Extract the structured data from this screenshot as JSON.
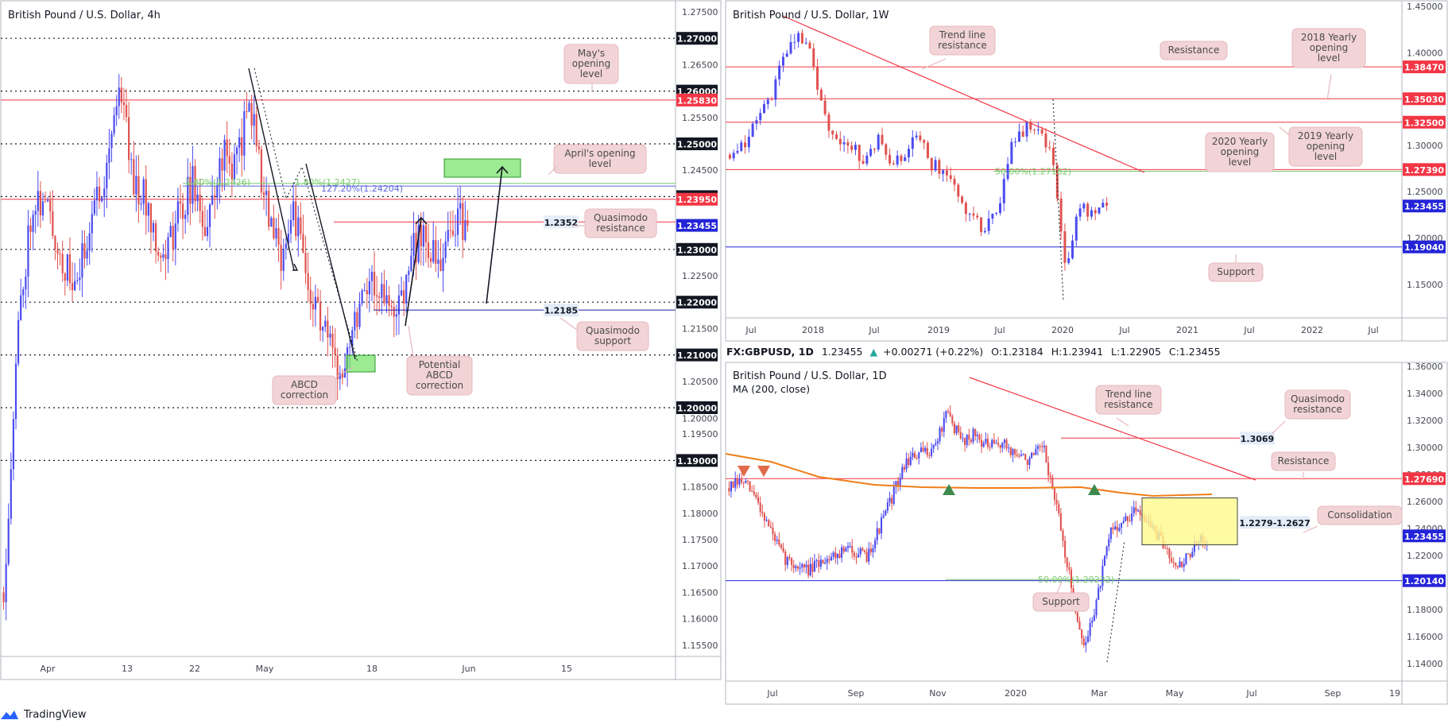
{
  "colors": {
    "up": "#4b4bf0",
    "down": "#e0524f",
    "red": "#f23645",
    "blue": "#2424d8",
    "black": "#131722",
    "orange": "#ef7d18",
    "green": "#7be36d",
    "callout_bg": "#f2d4d6",
    "callout_border": "#e6b9bd",
    "axis_text": "#434651",
    "yellow": "#fffa8c",
    "sma": "#ef7d18"
  },
  "panel_4h": {
    "title": "British Pound / U.S. Dollar, 4h",
    "x_ticks": [
      "Apr",
      "13",
      "22",
      "May",
      "18",
      "Jun",
      "15"
    ],
    "levels": [
      {
        "label": "1.27500",
        "kind": "axis"
      },
      {
        "label": "1.27000",
        "kind": "dotted"
      },
      {
        "label": "1.26500",
        "kind": "axis"
      },
      {
        "label": "1.26000",
        "kind": "dotted"
      },
      {
        "label": "1.25830",
        "kind": "red"
      },
      {
        "label": "1.25500",
        "kind": "axis"
      },
      {
        "label": "1.25000",
        "kind": "dotted"
      },
      {
        "label": "1.24500",
        "kind": "axis"
      },
      {
        "label": "1.24000",
        "kind": "dotted"
      },
      {
        "label": "1.23950",
        "kind": "red"
      },
      {
        "label": "1.23455",
        "kind": "current"
      },
      {
        "label": "1.23000",
        "kind": "dotted"
      },
      {
        "label": "1.22500",
        "kind": "axis"
      },
      {
        "label": "1.22000",
        "kind": "dotted"
      },
      {
        "label": "1.21500",
        "kind": "axis"
      },
      {
        "label": "1.21000",
        "kind": "dotted"
      },
      {
        "label": "1.20500",
        "kind": "axis"
      },
      {
        "label": "1.20000",
        "kind": "dotted"
      },
      {
        "label": "1.20000",
        "kind": "axis"
      },
      {
        "label": "1.19500",
        "kind": "axis"
      },
      {
        "label": "1.19000",
        "kind": "dotted"
      },
      {
        "label": "1.18500",
        "kind": "axis"
      },
      {
        "label": "1.18000",
        "kind": "axis"
      },
      {
        "label": "1.17500",
        "kind": "axis"
      },
      {
        "label": "1.17000",
        "kind": "axis"
      },
      {
        "label": "1.16500",
        "kind": "axis"
      },
      {
        "label": "1.16000",
        "kind": "axis"
      },
      {
        "label": "1.15500",
        "kind": "axis"
      }
    ],
    "price_tags": [
      "1.2352",
      "1.2185"
    ],
    "fib_texts": [
      "1.80%(1.2426)",
      "1.80%(1.2427)",
      "127.20%(1.24204)"
    ],
    "callouts": [
      "May's\nopening\nlevel",
      "April's opening\nlevel",
      "Quasimodo\nresistance",
      "Quasimodo\nsupport",
      "ABCD\ncorrection",
      "Potential\nABCD\ncorrection"
    ]
  },
  "panel_1w": {
    "title": "British Pound / U.S. Dollar, 1W",
    "x_ticks": [
      "Jul",
      "2018",
      "Jul",
      "2019",
      "Jul",
      "2020",
      "Jul",
      "2021",
      "Jul",
      "2022",
      "Jul"
    ],
    "axis_labels": [
      "1.45000",
      "1.40000",
      "1.35000",
      "1.30000",
      "1.25000",
      "1.20000",
      "1.15000"
    ],
    "price_tags": [
      "1.38470",
      "1.35030",
      "1.32500",
      "1.27390",
      "1.23455",
      "1.19040"
    ],
    "fib_text": "50.00%(1.27182)",
    "callouts": [
      "Trend line\nresistance",
      "Resistance",
      "2018 Yearly\nopening\nlevel",
      "2020 Yearly\nopening\nlevel",
      "2019 Yearly\nopening\nlevel",
      "Support"
    ]
  },
  "panel_1d": {
    "header_symbol": "FX:GBPUSD, 1D",
    "header_price": "1.23455",
    "header_change": "+0.00271 (+0.22%)",
    "header_o": "1.23184",
    "header_h": "1.23941",
    "header_l": "1.22905",
    "header_c": "1.23455",
    "title": "British Pound / U.S. Dollar, 1D",
    "ma_label": "MA (200, close)",
    "x_ticks": [
      "Jul",
      "Sep",
      "Nov",
      "2020",
      "Mar",
      "May",
      "Jul",
      "Sep",
      "19"
    ],
    "axis_labels": [
      "1.36000",
      "1.34000",
      "1.32000",
      "1.30000",
      "1.28000",
      "1.26000",
      "1.24000",
      "1.22000",
      "1.20000",
      "1.18000",
      "1.16000",
      "1.14000"
    ],
    "price_tags": [
      "1.27690",
      "1.23455",
      "1.20140"
    ],
    "box_tags": [
      "1.3069",
      "1.2279-1.2627"
    ],
    "fib_text": "50.00%(1.20232)",
    "callouts": [
      "Trend line\nresistance",
      "Quasimodo\nresistance",
      "Resistance",
      "Consolidation",
      "Support"
    ]
  },
  "footer": {
    "brand": "TradingView"
  },
  "chart_data": [
    {
      "type": "candlestick",
      "title": "British Pound / U.S. Dollar, 4h",
      "timeframe": "4h",
      "x_ticks": [
        "Apr",
        "13",
        "22",
        "May",
        "18",
        "Jun",
        "15"
      ],
      "ylim": [
        1.153,
        1.278
      ],
      "approx_closes": [
        1.185,
        1.238,
        1.236,
        1.226,
        1.238,
        1.246,
        1.262,
        1.245,
        1.233,
        1.252,
        1.24,
        1.25,
        1.258,
        1.234,
        1.228,
        1.215,
        1.212,
        1.22,
        1.218,
        1.228,
        1.218,
        1.232,
        1.2345
      ],
      "horizontal_levels": {
        "red": [
          1.2583,
          1.2395,
          1.2352
        ],
        "blue": [
          1.2185,
          1.242
        ],
        "dotted": [
          1.27,
          1.26,
          1.25,
          1.24,
          1.23,
          1.22,
          1.21,
          1.2,
          1.19
        ]
      },
      "current": 1.23455
    },
    {
      "type": "candlestick",
      "title": "British Pound / U.S. Dollar, 1W",
      "timeframe": "1W",
      "x_ticks": [
        "Jul",
        "2018",
        "Jul",
        "2019",
        "Jul",
        "2020",
        "Jul",
        "2021",
        "Jul",
        "2022",
        "Jul"
      ],
      "ylim": [
        1.12,
        1.45
      ],
      "approx_closes": [
        1.29,
        1.3,
        1.35,
        1.4,
        1.42,
        1.4,
        1.33,
        1.3,
        1.29,
        1.31,
        1.28,
        1.31,
        1.3,
        1.27,
        1.25,
        1.22,
        1.24,
        1.32,
        1.31,
        1.29,
        1.27,
        1.16,
        1.24,
        1.22,
        1.2345
      ],
      "horizontal_levels": {
        "red": [
          1.3847,
          1.3503,
          1.325,
          1.2739
        ],
        "blue": [
          1.1904
        ]
      },
      "current": 1.23455
    },
    {
      "type": "candlestick",
      "title": "British Pound / U.S. Dollar, 1D",
      "timeframe": "1D",
      "x_ticks": [
        "Jul",
        "Sep",
        "Nov",
        "2020",
        "Mar",
        "May",
        "Jul",
        "Sep",
        "19"
      ],
      "ylim": [
        1.135,
        1.362
      ],
      "approx_closes": [
        1.27,
        1.265,
        1.255,
        1.23,
        1.215,
        1.208,
        1.215,
        1.225,
        1.22,
        1.255,
        1.285,
        1.29,
        1.3,
        1.322,
        1.305,
        1.31,
        1.3,
        1.298,
        1.29,
        1.285,
        1.25,
        1.2,
        1.15,
        1.24,
        1.245,
        1.25,
        1.23,
        1.22,
        1.225,
        1.2345
      ],
      "ma200_approx": [
        1.287,
        1.282,
        1.275,
        1.27,
        1.268,
        1.267,
        1.266,
        1.266,
        1.265,
        1.265
      ],
      "horizontal_levels": {
        "red": [
          1.2769,
          1.3069
        ],
        "blue": [
          1.2014
        ]
      },
      "consolidation": [
        1.2279,
        1.2627
      ],
      "current": 1.23455
    }
  ]
}
